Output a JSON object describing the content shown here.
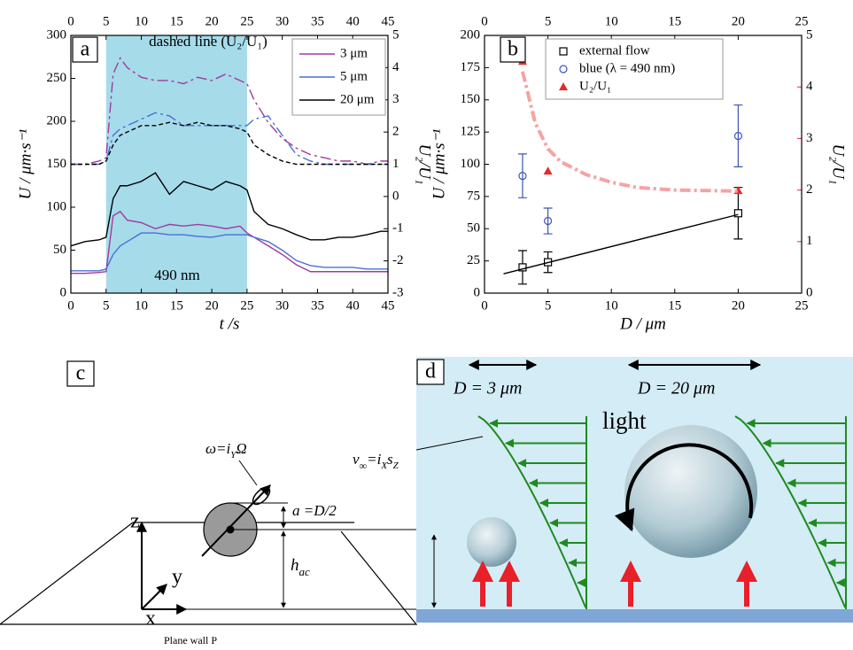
{
  "chart_data": [
    {
      "type": "line",
      "panel": "a",
      "xlabel": "t /s",
      "ylabel": "U / μm·s⁻¹",
      "y2label": "U₂/U₁",
      "x": [
        0,
        2,
        4,
        5,
        6,
        7,
        8,
        10,
        12,
        14,
        16,
        18,
        20,
        22,
        24,
        25,
        26,
        28,
        30,
        32,
        34,
        36,
        38,
        40,
        42,
        44,
        45
      ],
      "xlim": [
        0,
        45
      ],
      "xticks": [
        0,
        5,
        10,
        15,
        20,
        25,
        30,
        35,
        40,
        45
      ],
      "top_axis": true,
      "ylim": [
        0,
        300
      ],
      "yticks": [
        0,
        50,
        100,
        150,
        200,
        250,
        300
      ],
      "y2lim": [
        -3,
        5
      ],
      "y2ticks": [
        -3,
        -2,
        -1,
        0,
        1,
        2,
        3,
        4,
        5
      ],
      "y2color": "#000000",
      "shade": {
        "from": 5,
        "to": 25,
        "color": "#a6dbea"
      },
      "annotations": [
        "dashed line (U₂/U₁)",
        "490 nm"
      ],
      "legend": "upper right",
      "series": [
        {
          "name": "3 μm",
          "color": "#a03c9c",
          "style": "solid",
          "values": [
            23,
            23,
            24,
            25,
            90,
            95,
            85,
            82,
            75,
            80,
            78,
            80,
            78,
            75,
            78,
            70,
            65,
            55,
            45,
            33,
            25,
            25,
            25,
            25,
            25,
            25,
            25
          ]
        },
        {
          "name": "5 μm",
          "color": "#4a6fd8",
          "style": "solid",
          "values": [
            26,
            26,
            26,
            28,
            45,
            55,
            60,
            70,
            70,
            68,
            68,
            66,
            65,
            68,
            68,
            68,
            65,
            60,
            50,
            38,
            32,
            30,
            30,
            30,
            28,
            28,
            28
          ]
        },
        {
          "name": "20 μm",
          "color": "#000000",
          "style": "solid",
          "values": [
            55,
            60,
            62,
            65,
            110,
            125,
            125,
            130,
            140,
            115,
            130,
            125,
            120,
            130,
            125,
            120,
            95,
            80,
            75,
            68,
            62,
            62,
            65,
            65,
            68,
            72,
            72
          ]
        },
        {
          "color": "#a03c9c",
          "style": "dash-dot",
          "axis": "y2",
          "values": [
            1.0,
            1.0,
            1.1,
            1.2,
            3.8,
            4.3,
            4.0,
            3.7,
            3.6,
            3.6,
            3.5,
            3.7,
            3.6,
            3.8,
            3.6,
            3.5,
            3.0,
            2.3,
            1.8,
            1.5,
            1.3,
            1.2,
            1.1,
            1.1,
            1.0,
            1.1,
            1.1
          ]
        },
        {
          "color": "#4a6fd8",
          "style": "dash-dot",
          "axis": "y2",
          "values": [
            1.0,
            1.0,
            1.0,
            1.1,
            1.9,
            2.1,
            2.2,
            2.4,
            2.6,
            2.5,
            2.2,
            2.2,
            2.2,
            2.2,
            2.2,
            2.2,
            2.4,
            2.5,
            1.9,
            1.3,
            1.1,
            1.0,
            1.0,
            1.0,
            1.0,
            1.0,
            1.0
          ]
        },
        {
          "color": "#000000",
          "style": "dashed",
          "axis": "y2",
          "values": [
            1.0,
            1.0,
            1.0,
            1.1,
            1.6,
            1.9,
            2.0,
            2.2,
            2.2,
            2.3,
            2.2,
            2.3,
            2.2,
            2.2,
            2.1,
            2.0,
            1.6,
            1.3,
            1.1,
            1.0,
            1.0,
            1.0,
            1.0,
            1.0,
            1.0,
            1.0,
            1.0
          ]
        }
      ]
    },
    {
      "type": "scatter",
      "panel": "b",
      "xlabel": "D / μm",
      "ylabel": "U / μm·s⁻¹",
      "y2label": "U₂/U₁",
      "xlim": [
        0,
        25
      ],
      "xticks": [
        0,
        5,
        10,
        15,
        20,
        25
      ],
      "top_axis": true,
      "ylim": [
        0,
        200
      ],
      "yticks": [
        0,
        25,
        50,
        75,
        100,
        125,
        150,
        175,
        200
      ],
      "y2lim": [
        0,
        5
      ],
      "y2ticks": [
        0,
        1,
        2,
        3,
        4,
        5
      ],
      "y2color": "#e8292b",
      "legend": "upper center",
      "series": [
        {
          "name": "external flow",
          "color": "#000000",
          "marker": "square",
          "x": [
            3,
            5,
            20
          ],
          "values": [
            20,
            24,
            62
          ],
          "errors": [
            13,
            8,
            20
          ]
        },
        {
          "name": "blue (λ = 490 nm)",
          "color": "#3a55b8",
          "marker": "circle",
          "x": [
            3,
            5,
            20
          ],
          "values": [
            91,
            56,
            122
          ],
          "errors": [
            17,
            10,
            24
          ]
        },
        {
          "name": "U₂/U₁",
          "color": "#e8292b",
          "marker": "triangle",
          "axis": "y2",
          "x": [
            3,
            5,
            20
          ],
          "values": [
            4.5,
            2.37,
            1.99
          ]
        },
        {
          "color": "#000000",
          "style": "solid",
          "x": [
            1.5,
            20
          ],
          "values": [
            15,
            61
          ]
        },
        {
          "color": "#f5a3a3",
          "style": "dash-dot",
          "axis": "y2",
          "x": [
            3,
            4,
            5,
            6,
            8,
            10,
            12,
            15,
            20
          ],
          "values": [
            4.3,
            3.3,
            2.8,
            2.55,
            2.3,
            2.15,
            2.05,
            2.0,
            1.98
          ]
        }
      ]
    }
  ],
  "diagram_c": {
    "label": "c",
    "omega": [
      "ω=i",
      "Y",
      "Ω"
    ],
    "velocity": [
      "v",
      "∞",
      "=i",
      "X",
      "s",
      "Z"
    ],
    "radius": "a =D/2",
    "height": [
      "h",
      "ac"
    ],
    "axes": {
      "z": "z",
      "y": "y",
      "x": "x"
    },
    "wall": "Plane wall P"
  },
  "diagram_d": {
    "label": "d",
    "sizes": [
      "D = 3 μm",
      "D = 20 μm"
    ],
    "light": "light"
  }
}
